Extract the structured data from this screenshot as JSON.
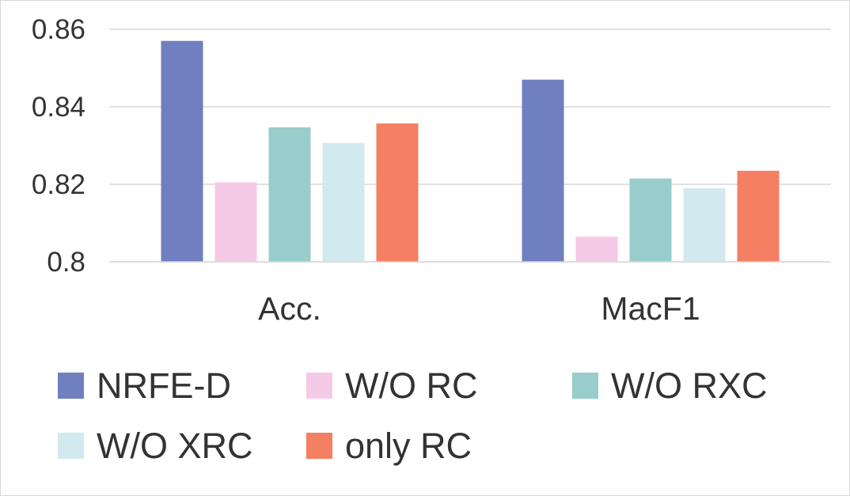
{
  "chart_data": {
    "type": "bar",
    "categories": [
      "Acc.",
      "MacF1"
    ],
    "series": [
      {
        "name": "NRFE-D",
        "color": "#6f7fbf",
        "values": [
          0.857,
          0.847
        ]
      },
      {
        "name": "W/O RC",
        "color": "#f5cae6",
        "values": [
          0.8205,
          0.8065
        ]
      },
      {
        "name": "W/O RXC",
        "color": "#98cdcc",
        "values": [
          0.8347,
          0.8215
        ]
      },
      {
        "name": "W/O XRC",
        "color": "#d2e9f0",
        "values": [
          0.8307,
          0.819
        ]
      },
      {
        "name": "only RC",
        "color": "#f47f62",
        "values": [
          0.8357,
          0.8235
        ]
      }
    ],
    "y_ticks": [
      "0.8",
      "0.82",
      "0.84",
      "0.86"
    ],
    "ylim": [
      0.8,
      0.86
    ],
    "grid": true,
    "legend_position": "bottom"
  }
}
